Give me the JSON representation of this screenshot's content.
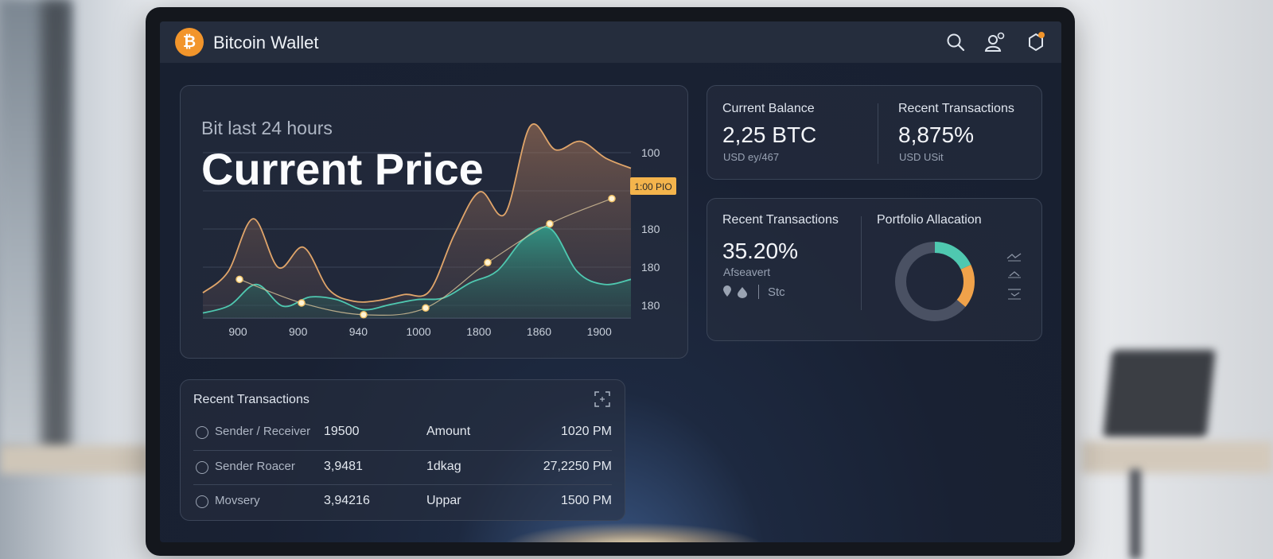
{
  "app": {
    "title": "Bitcoin Wallet",
    "logo_symbol": "₿"
  },
  "header_icons": [
    "search-icon",
    "user-icon",
    "notification-icon"
  ],
  "colors": {
    "accent": "#f2952b",
    "teal": "#4fc8b0",
    "background": "#192133",
    "card_border": "#3a4457"
  },
  "price_chart": {
    "subtitle": "Bit last 24 hours",
    "title": "Current Price",
    "chart_data": {
      "type": "area",
      "x_tick_labels": [
        "900",
        "900",
        "940",
        "1000",
        "1800",
        "1860",
        "1900"
      ],
      "y_tick_labels": [
        "100",
        "1:00 PIO",
        "180",
        "180",
        "180"
      ],
      "highlighted_tick": "1:00 PIO",
      "series": [
        {
          "color": "#e0a56a",
          "values": [
            30,
            55,
            118,
            60,
            84,
            34,
            20,
            21,
            28,
            32,
            100,
            150,
            124,
            228,
            200,
            210,
            190,
            178
          ]
        },
        {
          "color": "#4fc8b0",
          "values": [
            6,
            15,
            40,
            14,
            25,
            22,
            10,
            16,
            22,
            24,
            42,
            56,
            94,
            106,
            55,
            40,
            46
          ]
        }
      ],
      "trend_markers": [
        46,
        18,
        4,
        12,
        66,
        112,
        142
      ],
      "grid": true
    }
  },
  "balance": {
    "left": {
      "label": "Current Balance",
      "value": "2,25 BTC",
      "sub": "USD ey/467"
    },
    "right": {
      "label": "Recent Transactions",
      "value": "8,875%",
      "sub": "USD USit"
    }
  },
  "summary": {
    "left": {
      "label": "Recent Transactions",
      "value": "35.20%",
      "sub": "Afseavert",
      "footer": "Stc"
    },
    "allocation": {
      "label": "Portfolio Allacation",
      "chart_data": {
        "type": "pie",
        "slices": [
          {
            "share": 0.18,
            "color": "#4fc8b0"
          },
          {
            "share": 0.18,
            "color": "#f0a24a"
          },
          {
            "share": 0.64,
            "color": "#4a5163"
          }
        ]
      }
    }
  },
  "transactions": {
    "title": "Recent Transactions",
    "rows": [
      {
        "name": "Sender / Receiver",
        "value": "19500",
        "type": "Amount",
        "time": "1020 PM"
      },
      {
        "name": "Sender Roacer",
        "value": "3,9481",
        "type": "1dkag",
        "time": "27,2250 PM"
      },
      {
        "name": "Movsery",
        "value": "3,94216",
        "type": "Uppar",
        "time": "1500 PM"
      }
    ]
  }
}
